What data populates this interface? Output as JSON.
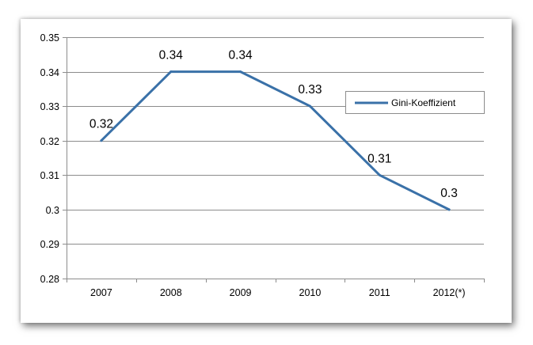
{
  "chart_data": {
    "type": "line",
    "categories": [
      "2007",
      "2008",
      "2009",
      "2010",
      "2011",
      "2012(*)"
    ],
    "series": [
      {
        "name": "Gini-Koeffizient",
        "values": [
          0.32,
          0.34,
          0.34,
          0.33,
          0.31,
          0.3
        ],
        "data_labels": [
          "0.32",
          "0.34",
          "0.34",
          "0.33",
          "0.31",
          "0.3"
        ]
      }
    ],
    "yticks": [
      0.28,
      0.29,
      0.3,
      0.31,
      0.32,
      0.33,
      0.34,
      0.35
    ],
    "ytick_labels": [
      "0.28",
      "0.29",
      "0.3",
      "0.31",
      "0.32",
      "0.33",
      "0.34",
      "0.35"
    ],
    "ylim": [
      0.28,
      0.35
    ],
    "grid": "horizontal",
    "legend_position": "right",
    "colors": {
      "line": "#3a71a8",
      "grid": "#8c8c8c",
      "axis": "#8c8c8c"
    },
    "title": "",
    "xlabel": "",
    "ylabel": ""
  }
}
